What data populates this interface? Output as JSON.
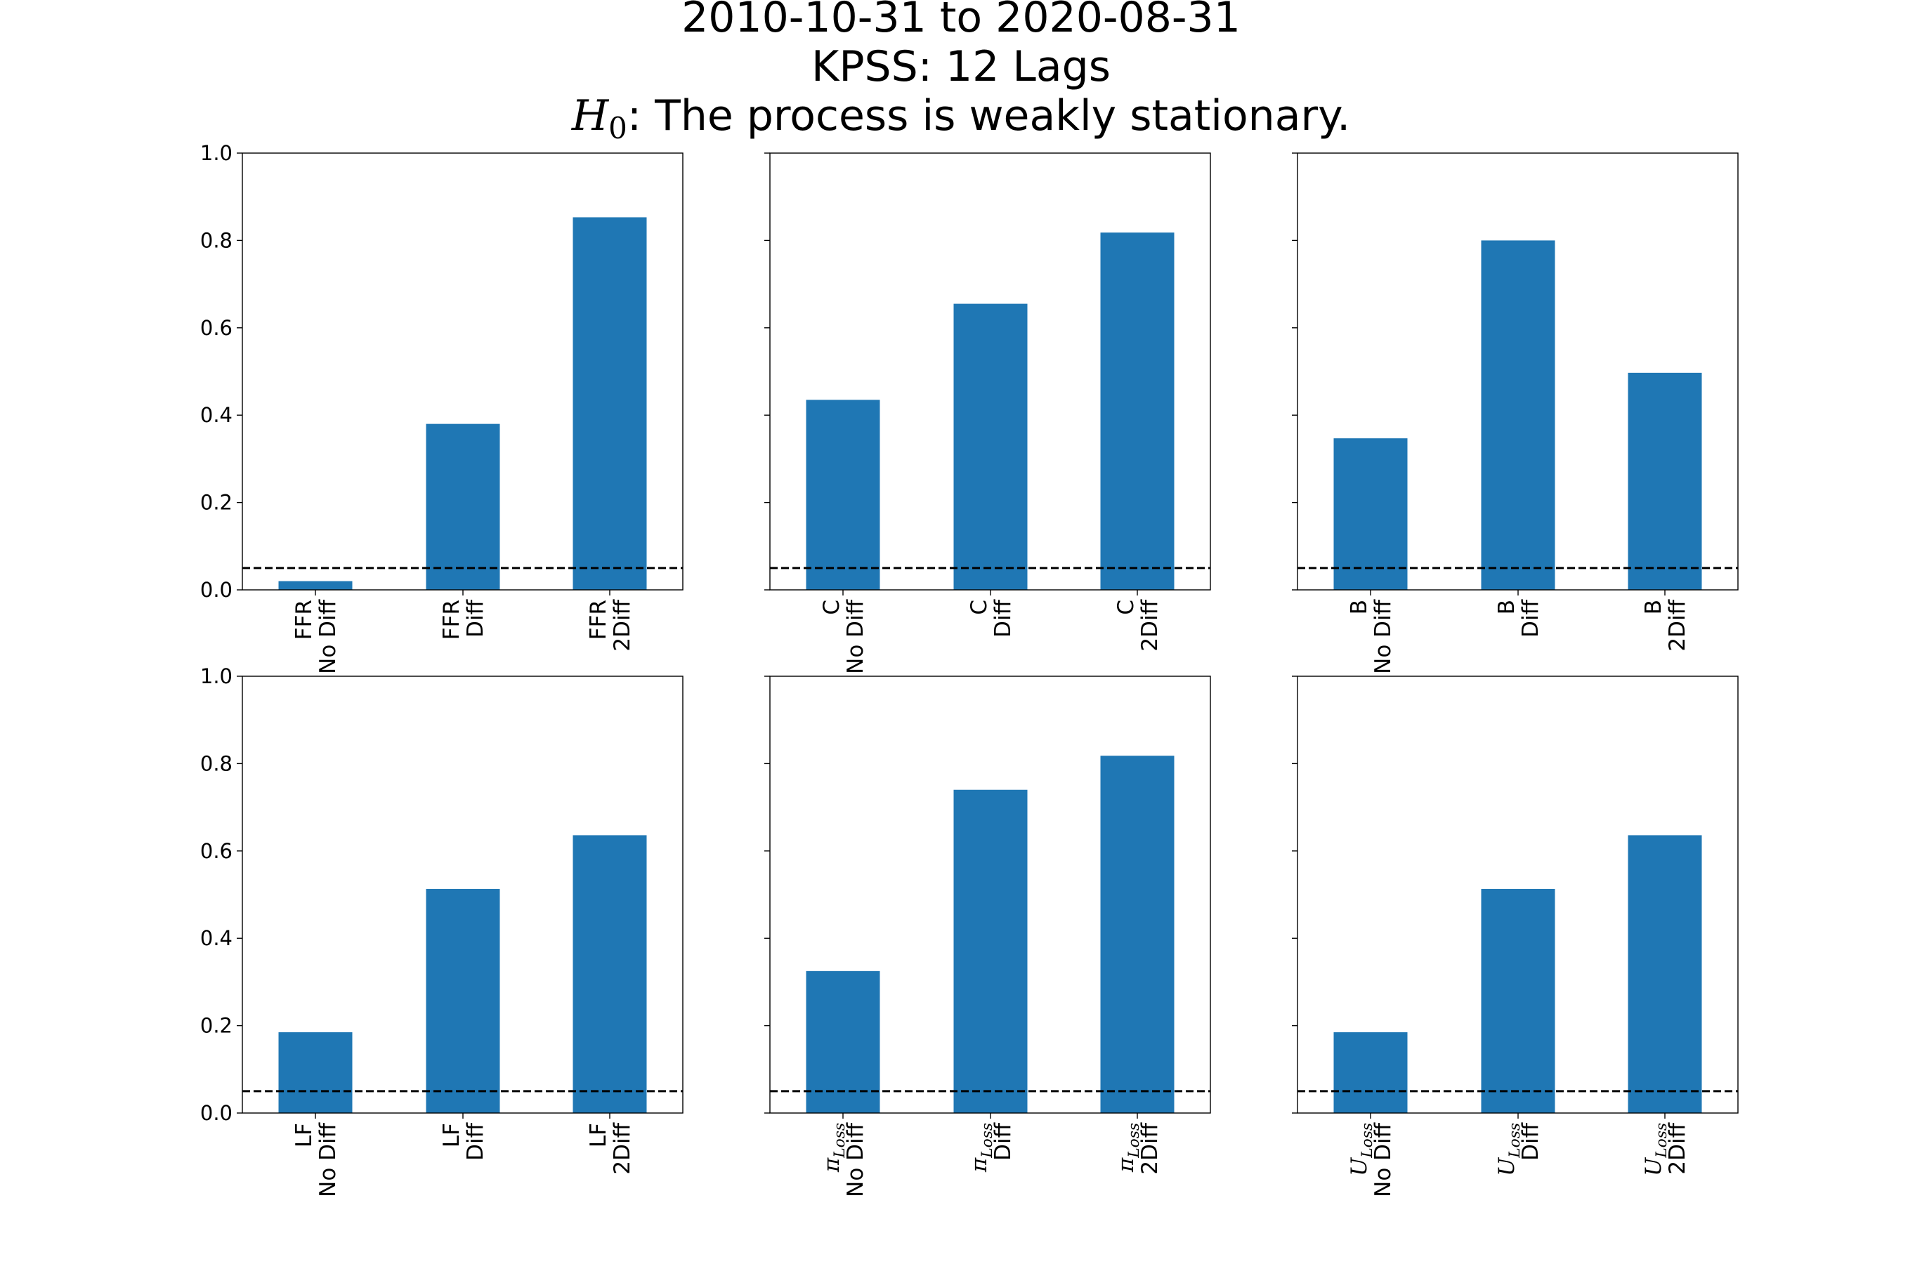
{
  "title": {
    "line1": "2010-10-31 to 2020-08-31",
    "line2": "KPSS: 12 Lags",
    "line3_symbol": "H",
    "line3_subscript": "0",
    "line3_text": ":  The process is weakly stationary."
  },
  "chart_data": [
    {
      "type": "bar",
      "categories": [
        "FFR\nNo Diff",
        "FFR\nDiff",
        "FFR\n2Diff"
      ],
      "values": [
        0.02,
        0.38,
        0.853
      ],
      "ylim": [
        0,
        1.0
      ],
      "yticks": [
        "0.0",
        "0.2",
        "0.4",
        "0.6",
        "0.8",
        "1.0"
      ],
      "threshold": 0.05,
      "bar_color": "#1f77b4",
      "threshold_color": "#000000"
    },
    {
      "type": "bar",
      "categories": [
        "C\nNo Diff",
        "C\nDiff",
        "C\n2Diff"
      ],
      "values": [
        0.435,
        0.655,
        0.818
      ],
      "ylim": [
        0,
        1.0
      ],
      "yticks": [
        "0.0",
        "0.2",
        "0.4",
        "0.6",
        "0.8",
        "1.0"
      ],
      "threshold": 0.05,
      "bar_color": "#1f77b4",
      "threshold_color": "#000000"
    },
    {
      "type": "bar",
      "categories": [
        "B\nNo Diff",
        "B\nDiff",
        "B\n2Diff"
      ],
      "values": [
        0.347,
        0.8,
        0.497
      ],
      "ylim": [
        0,
        1.0
      ],
      "yticks": [
        "0.0",
        "0.2",
        "0.4",
        "0.6",
        "0.8",
        "1.0"
      ],
      "threshold": 0.05,
      "bar_color": "#1f77b4",
      "threshold_color": "#000000"
    },
    {
      "type": "bar",
      "categories": [
        "LF\nNo Diff",
        "LF\nDiff",
        "LF\n2Diff"
      ],
      "values": [
        0.185,
        0.513,
        0.636
      ],
      "ylim": [
        0,
        1.0
      ],
      "yticks": [
        "0.0",
        "0.2",
        "0.4",
        "0.6",
        "0.8",
        "1.0"
      ],
      "threshold": 0.05,
      "bar_color": "#1f77b4",
      "threshold_color": "#000000"
    },
    {
      "type": "bar",
      "categories": [
        "πLoss\nNo Diff",
        "πLoss\nDiff",
        "πLoss\n2Diff"
      ],
      "values": [
        0.325,
        0.74,
        0.818
      ],
      "ylim": [
        0,
        1.0
      ],
      "yticks": [
        "0.0",
        "0.2",
        "0.4",
        "0.6",
        "0.8",
        "1.0"
      ],
      "threshold": 0.05,
      "bar_color": "#1f77b4",
      "threshold_color": "#000000"
    },
    {
      "type": "bar",
      "categories": [
        "ULoss\nNo Diff",
        "ULoss\nDiff",
        "ULoss\n2Diff"
      ],
      "values": [
        0.185,
        0.513,
        0.636
      ],
      "ylim": [
        0,
        1.0
      ],
      "yticks": [
        "0.0",
        "0.2",
        "0.4",
        "0.6",
        "0.8",
        "1.0"
      ],
      "threshold": 0.05,
      "bar_color": "#1f77b4",
      "threshold_color": "#000000"
    }
  ]
}
